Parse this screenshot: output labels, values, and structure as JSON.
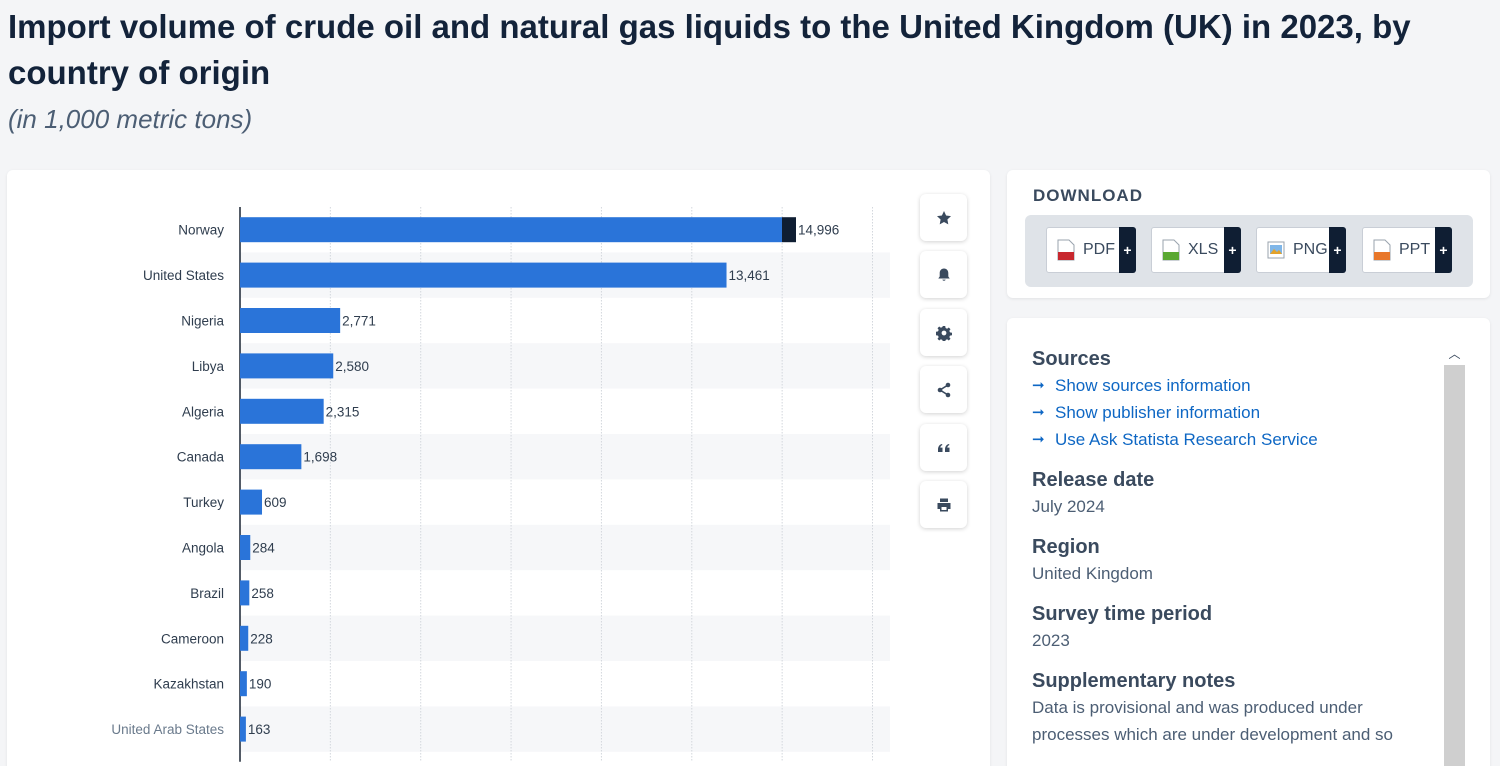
{
  "page": {
    "title": "Import volume of crude oil and natural gas liquids to the United Kingdom (UK) in 2023, by country of origin",
    "subtitle": "(in 1,000 metric tons)"
  },
  "toolbar": {
    "buttons": [
      {
        "name": "favorite-button",
        "icon": "star-icon"
      },
      {
        "name": "notification-button",
        "icon": "bell-icon"
      },
      {
        "name": "settings-button",
        "icon": "gear-icon"
      },
      {
        "name": "share-button",
        "icon": "share-icon"
      },
      {
        "name": "cite-button",
        "icon": "quote-icon"
      },
      {
        "name": "print-button",
        "icon": "printer-icon"
      }
    ]
  },
  "download": {
    "title": "DOWNLOAD",
    "buttons": [
      {
        "label": "PDF",
        "icon": "pdf-file-icon",
        "plus": "+"
      },
      {
        "label": "XLS",
        "icon": "xls-file-icon",
        "plus": "+"
      },
      {
        "label": "PNG",
        "icon": "png-file-icon",
        "plus": "+"
      },
      {
        "label": "PPT",
        "icon": "ppt-file-icon",
        "plus": "+"
      }
    ]
  },
  "info": {
    "sources_heading": "Sources",
    "links": [
      "Show sources information",
      "Show publisher information",
      "Use Ask Statista Research Service"
    ],
    "release_heading": "Release date",
    "release_value": "July 2024",
    "region_heading": "Region",
    "region_value": "United Kingdom",
    "period_heading": "Survey time period",
    "period_value": "2023",
    "notes_heading": "Supplementary notes",
    "notes_value": "Data is provisional and was produced under processes which are under development and so"
  },
  "colors": {
    "bar": "#2a74d9",
    "bar_highlight_cap": "#0f1e33",
    "stripe": "#f6f7f9",
    "grid": "#d3d7dd",
    "axis": "#1a2533"
  },
  "chart_data": {
    "type": "bar",
    "orientation": "horizontal",
    "categories": [
      "Norway",
      "United States",
      "Nigeria",
      "Libya",
      "Algeria",
      "Canada",
      "Turkey",
      "Angola",
      "Brazil",
      "Cameroon",
      "Kazakhstan",
      "United Arab States"
    ],
    "values": [
      14996,
      13461,
      2771,
      2580,
      2315,
      1698,
      609,
      284,
      258,
      228,
      190,
      163
    ],
    "value_labels": [
      "14,996",
      "13,461",
      "2,771",
      "2,580",
      "2,315",
      "1,698",
      "609",
      "284",
      "258",
      "228",
      "190",
      "163"
    ],
    "xlim": [
      0,
      17500
    ],
    "grid": true
  }
}
